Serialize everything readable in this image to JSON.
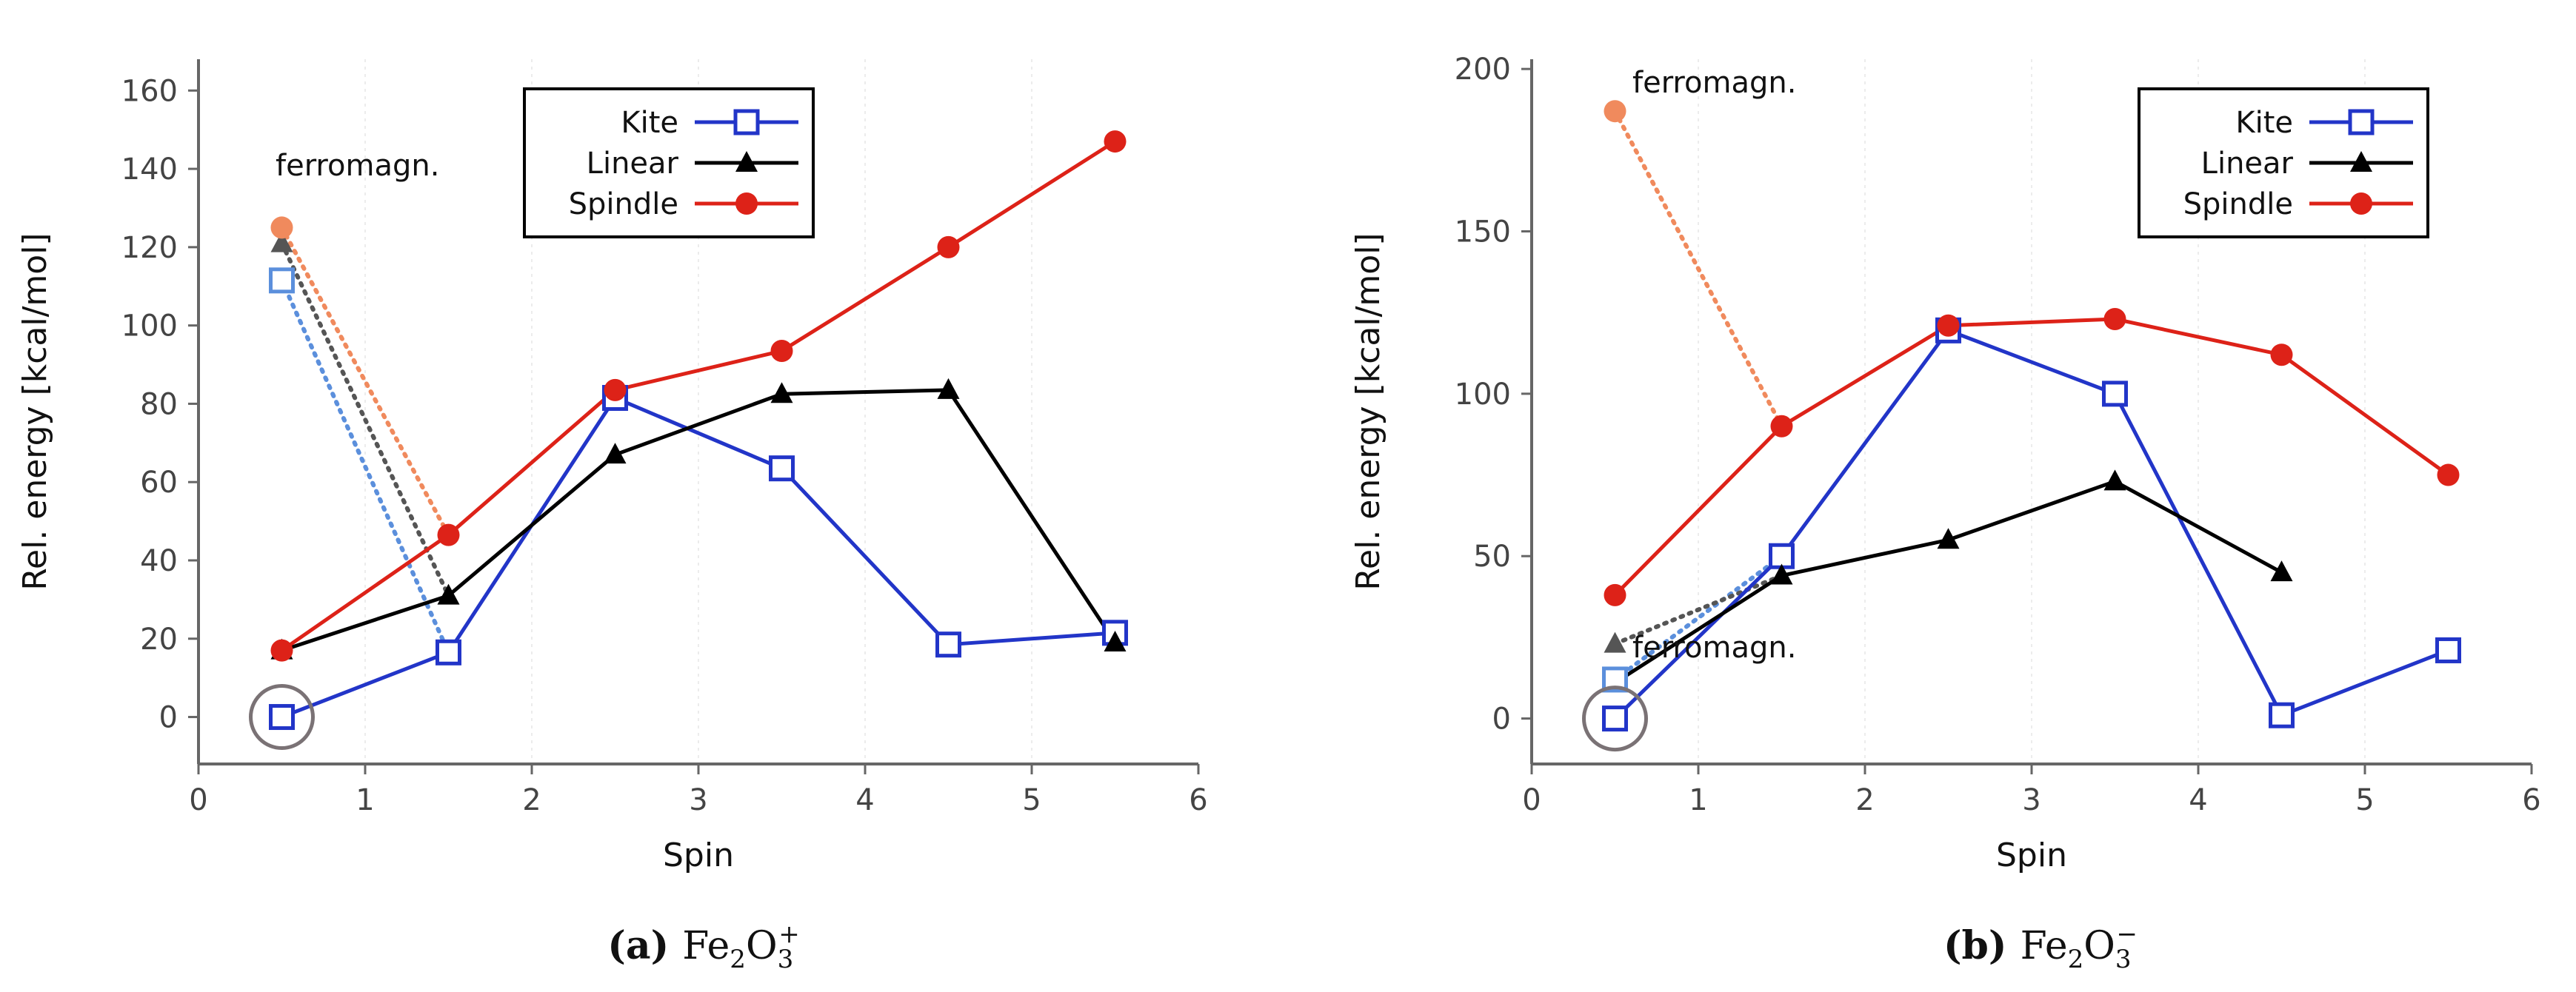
{
  "chart_data": [
    {
      "type": "line",
      "panel_label": "(a)",
      "caption_formula": {
        "base": "Fe",
        "sub1": "2",
        "mid": "O",
        "sub2": "3",
        "sup": "+"
      },
      "xlabel": "Spin",
      "ylabel": "Rel. energy [kcal/mol]",
      "xlim": [
        0,
        6
      ],
      "ylim": [
        -12,
        168
      ],
      "xticks": [
        0,
        1,
        2,
        3,
        4,
        5,
        6
      ],
      "yticks": [
        0,
        20,
        40,
        60,
        80,
        100,
        120,
        140,
        160
      ],
      "legend": {
        "position": "top-right",
        "entries": [
          "Kite",
          "Linear",
          "Spindle"
        ]
      },
      "series": [
        {
          "name": "Kite",
          "color": "#2235c8",
          "marker": "square",
          "x": [
            0.5,
            1.5,
            2.5,
            3.5,
            4.5,
            5.5
          ],
          "y": [
            0,
            16.5,
            81.5,
            63.5,
            18.5,
            21.5
          ]
        },
        {
          "name": "Linear",
          "color": "#000000",
          "marker": "triangle",
          "x": [
            0.5,
            1.5,
            2.5,
            3.5,
            4.5,
            5.5
          ],
          "y": [
            17,
            31,
            67,
            82.5,
            83.5,
            19
          ]
        },
        {
          "name": "Spindle",
          "color": "#dd2218",
          "marker": "circle",
          "x": [
            0.5,
            1.5,
            2.5,
            3.5,
            4.5,
            5.5
          ],
          "y": [
            17,
            46.5,
            83.5,
            93.5,
            120,
            147
          ]
        }
      ],
      "ferromagnetic": {
        "label": "ferromagn.",
        "points": [
          {
            "series": "Kite",
            "x": 0.5,
            "y": 111.5,
            "color": "#5b8fdc",
            "target_x": 1.5,
            "target_y": 16.5
          },
          {
            "series": "Linear",
            "x": 0.5,
            "y": 121,
            "color": "#555555",
            "target_x": 1.5,
            "target_y": 31
          },
          {
            "series": "Spindle",
            "x": 0.5,
            "y": 125,
            "color": "#f08a5d",
            "target_x": 1.5,
            "target_y": 46.5
          }
        ]
      },
      "ground_state": {
        "x": 0.5,
        "y": 0
      }
    },
    {
      "type": "line",
      "panel_label": "(b)",
      "caption_formula": {
        "base": "Fe",
        "sub1": "2",
        "mid": "O",
        "sub2": "3",
        "sup": "−"
      },
      "xlabel": "Spin",
      "ylabel": "Rel. energy [kcal/mol]",
      "xlim": [
        0,
        6
      ],
      "ylim": [
        -14,
        203
      ],
      "xticks": [
        0,
        1,
        2,
        3,
        4,
        5,
        6
      ],
      "yticks": [
        0,
        50,
        100,
        150,
        200
      ],
      "legend": {
        "position": "top-right",
        "entries": [
          "Kite",
          "Linear",
          "Spindle"
        ]
      },
      "series": [
        {
          "name": "Kite",
          "color": "#2235c8",
          "marker": "square",
          "x": [
            0.5,
            1.5,
            2.5,
            3.5,
            4.5,
            5.5
          ],
          "y": [
            0,
            50,
            119.5,
            100,
            1,
            21
          ]
        },
        {
          "name": "Linear",
          "color": "#000000",
          "marker": "triangle",
          "x": [
            0.5,
            1.5,
            2.5,
            3.5,
            4.5
          ],
          "y": [
            11,
            44,
            55,
            73,
            45
          ]
        },
        {
          "name": "Spindle",
          "color": "#dd2218",
          "marker": "circle",
          "x": [
            0.5,
            1.5,
            2.5,
            3.5,
            4.5,
            5.5
          ],
          "y": [
            38,
            90,
            121,
            123,
            112,
            75
          ]
        }
      ],
      "ferromagnetic": {
        "label": "ferromagn.",
        "label2": "ferromagn.",
        "points": [
          {
            "series": "Kite",
            "x": 0.5,
            "y": 12,
            "color": "#5b8fdc",
            "target_x": 1.5,
            "target_y": 50
          },
          {
            "series": "Linear",
            "x": 0.5,
            "y": 23,
            "color": "#555555",
            "target_x": 1.5,
            "target_y": 44
          },
          {
            "series": "Spindle",
            "x": 0.5,
            "y": 187,
            "color": "#f08a5d",
            "target_x": 1.5,
            "target_y": 90
          }
        ]
      },
      "ground_state": {
        "x": 0.5,
        "y": 0
      }
    }
  ]
}
